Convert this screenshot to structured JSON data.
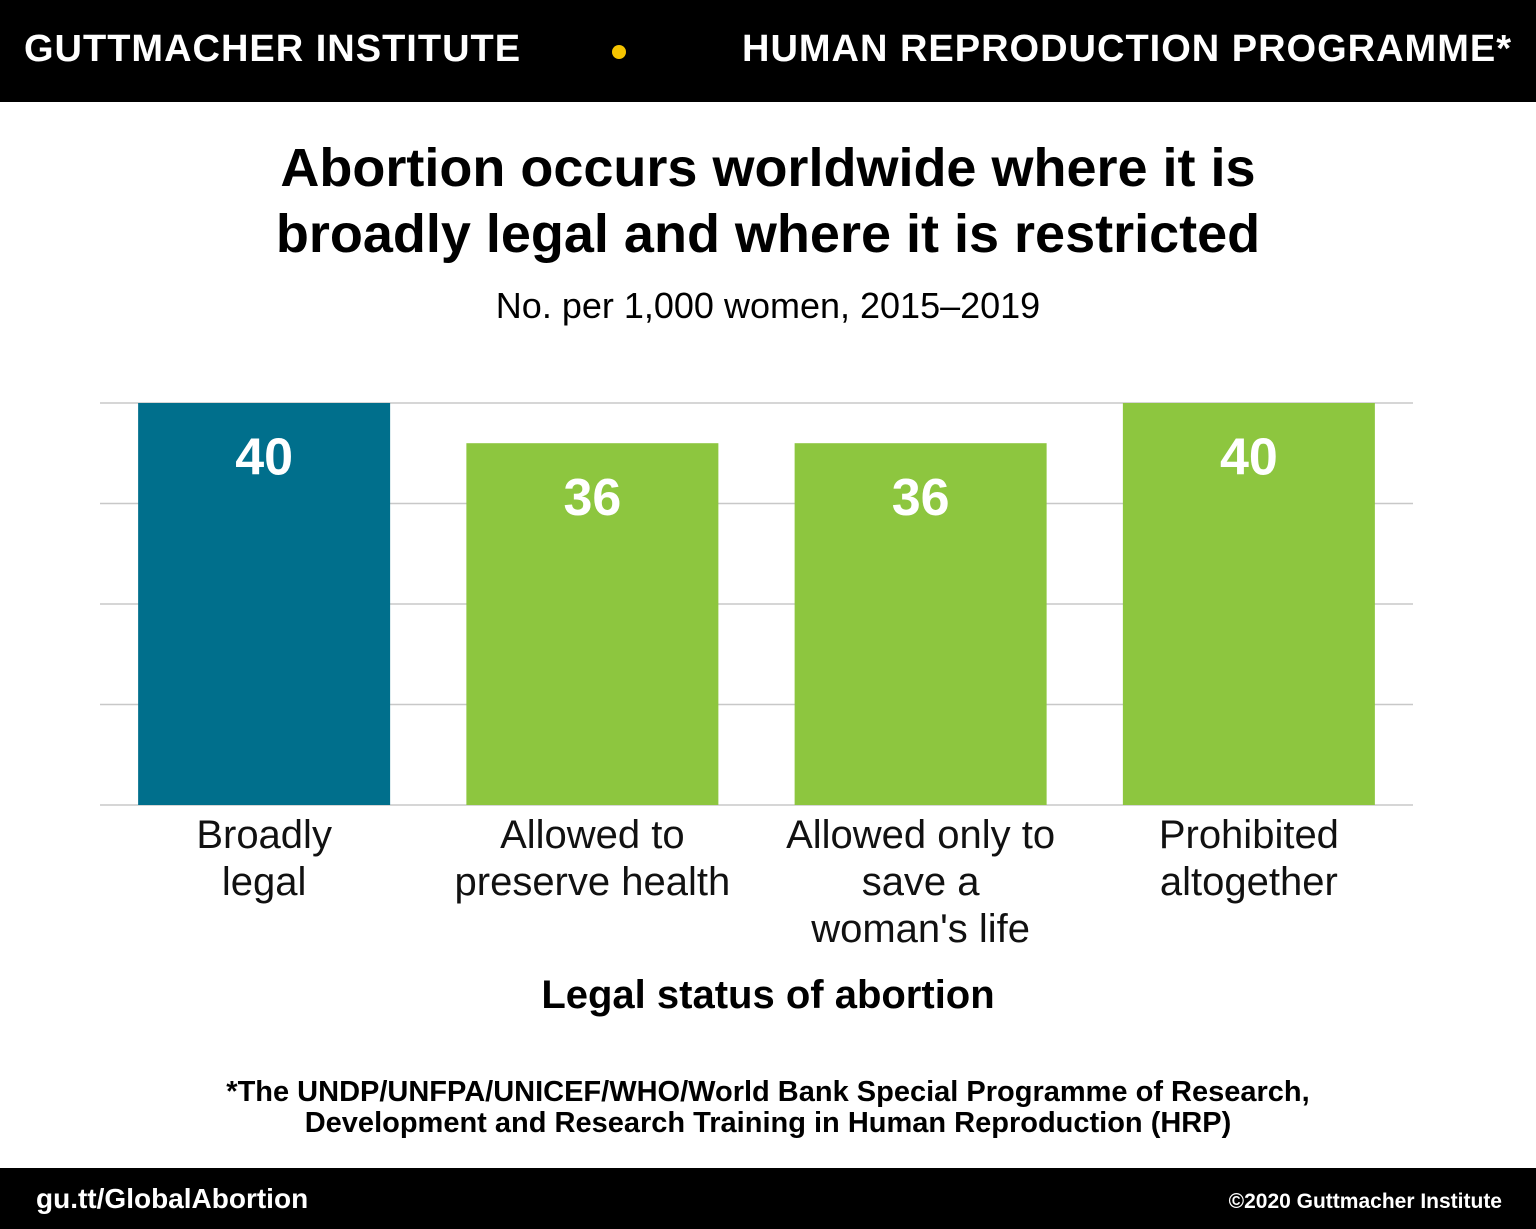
{
  "header": {
    "left": "GUTTMACHER INSTITUTE",
    "right": "HUMAN REPRODUCTION PROGRAMME*"
  },
  "chart_data": {
    "type": "bar",
    "title": "Abortion occurs worldwide where it is broadly legal and where it is restricted",
    "subtitle": "No. per 1,000 women, 2015–2019",
    "categories": [
      "Broadly legal",
      "Allowed to preserve health",
      "Allowed only to save a woman's life",
      "Prohibited altogether"
    ],
    "values": [
      40,
      36,
      36,
      40
    ],
    "colors": [
      "#006f8c",
      "#8dc63f",
      "#8dc63f",
      "#8dc63f"
    ],
    "x_label": "Legal status of abortion",
    "ylim": [
      0,
      40
    ],
    "yticks": [
      0,
      10,
      20,
      30,
      40
    ],
    "grid": true
  },
  "footnote": "*The UNDP/UNFPA/UNICEF/WHO/World Bank Special Programme of Research, Development and Research Training in Human Reproduction (HRP)",
  "footer": {
    "left": "gu.tt/GlobalAbortion",
    "right": "©2020 Guttmacher Institute"
  }
}
